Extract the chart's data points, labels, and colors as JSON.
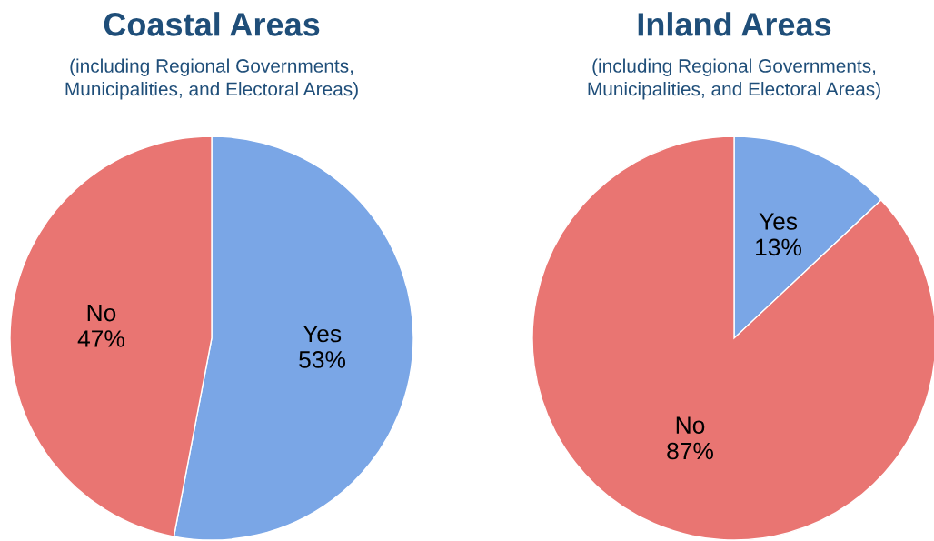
{
  "chart_data": [
    {
      "type": "pie",
      "title": "Coastal Areas",
      "subtitle": "(including Regional Governments,\nMunicipalities, and Electoral Areas)",
      "categories": [
        "Yes",
        "No"
      ],
      "values": [
        53,
        47
      ],
      "value_labels": [
        "53%",
        "47%"
      ],
      "colors": [
        "#7aa6e6",
        "#e97572"
      ],
      "legend": false
    },
    {
      "type": "pie",
      "title": "Inland Areas",
      "subtitle": "(including Regional Governments,\nMunicipalities, and Electoral Areas)",
      "categories": [
        "Yes",
        "No"
      ],
      "values": [
        13,
        87
      ],
      "value_labels": [
        "13%",
        "87%"
      ],
      "colors": [
        "#7aa6e6",
        "#e97572"
      ],
      "legend": false
    }
  ]
}
